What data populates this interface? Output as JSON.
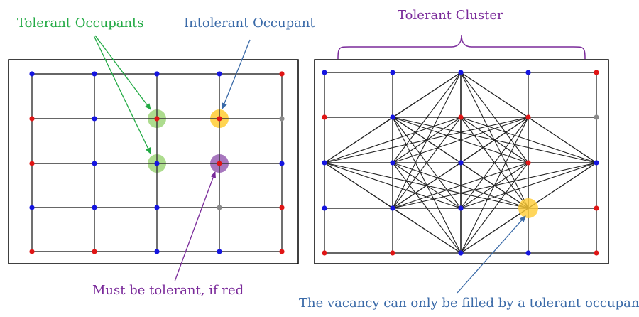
{
  "labels": {
    "tolerant_occupants": "Tolerant Occupants",
    "intolerant_occupant": "Intolerant Occupant",
    "tolerant_cluster": "Tolerant Cluster",
    "must_be_tolerant": "Must be tolerant, if red",
    "vacancy_note": "The vacancy can only be filled by a tolerant occupant."
  },
  "colors": {
    "green_label": "#22aa44",
    "blue_label": "#3a6aa8",
    "purple_label": "#7a2a9a",
    "node_blue": "#1515e0",
    "node_red": "#e01515",
    "node_gray": "#8a8a8a",
    "highlight_green": "#9fd67a",
    "highlight_yellow": "#ffcc33",
    "highlight_purple": "#8a4aa8"
  },
  "left_grid": {
    "rows": [
      [
        "blue",
        "blue",
        "blue",
        "blue",
        "red"
      ],
      [
        "red",
        "blue",
        "red",
        "red",
        "gray"
      ],
      [
        "red",
        "blue",
        "blue",
        "red",
        "blue"
      ],
      [
        "blue",
        "blue",
        "blue",
        "gray",
        "red"
      ],
      [
        "red",
        "red",
        "blue",
        "blue",
        "red"
      ]
    ]
  },
  "right_grid": {
    "rows": [
      [
        "blue",
        "blue",
        "blue",
        "blue",
        "red"
      ],
      [
        "red",
        "blue",
        "red",
        "red",
        "gray"
      ],
      [
        "blue",
        "blue",
        "blue",
        "red",
        "blue"
      ],
      [
        "blue",
        "blue",
        "blue",
        "empty",
        "red"
      ],
      [
        "red",
        "red",
        "blue",
        "blue",
        "red"
      ]
    ]
  }
}
